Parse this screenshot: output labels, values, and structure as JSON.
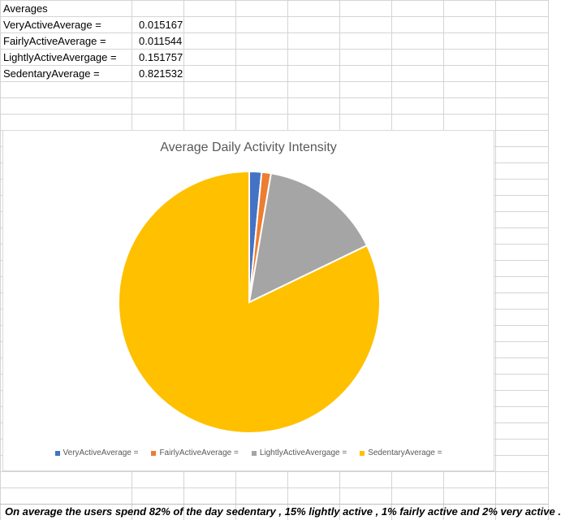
{
  "sheet": {
    "header": "Averages",
    "rows": [
      {
        "label": "VeryActiveAverage =",
        "value": "0.015167"
      },
      {
        "label": "FairlyActiveAverage =",
        "value": "0.011544"
      },
      {
        "label": "LightlyActiveAvergage =",
        "value": "0.151757"
      },
      {
        "label": "SedentaryAverage =",
        "value": "0.821532"
      }
    ],
    "note": "On average the users spend 82% of the day sedentary , 15% lightly active , 1% fairly active and 2% very active ."
  },
  "chart_data": {
    "type": "pie",
    "title": "Average Daily Activity Intensity",
    "categories": [
      "VeryActiveAverage =",
      "FairlyActiveAverage =",
      "LightlyActiveAvergage =",
      "SedentaryAverage ="
    ],
    "values": [
      0.015167,
      0.011544,
      0.151757,
      0.821532
    ],
    "colors": [
      "#4472C4",
      "#ED7D31",
      "#A5A5A5",
      "#FFC000"
    ],
    "legend": "bottom"
  }
}
